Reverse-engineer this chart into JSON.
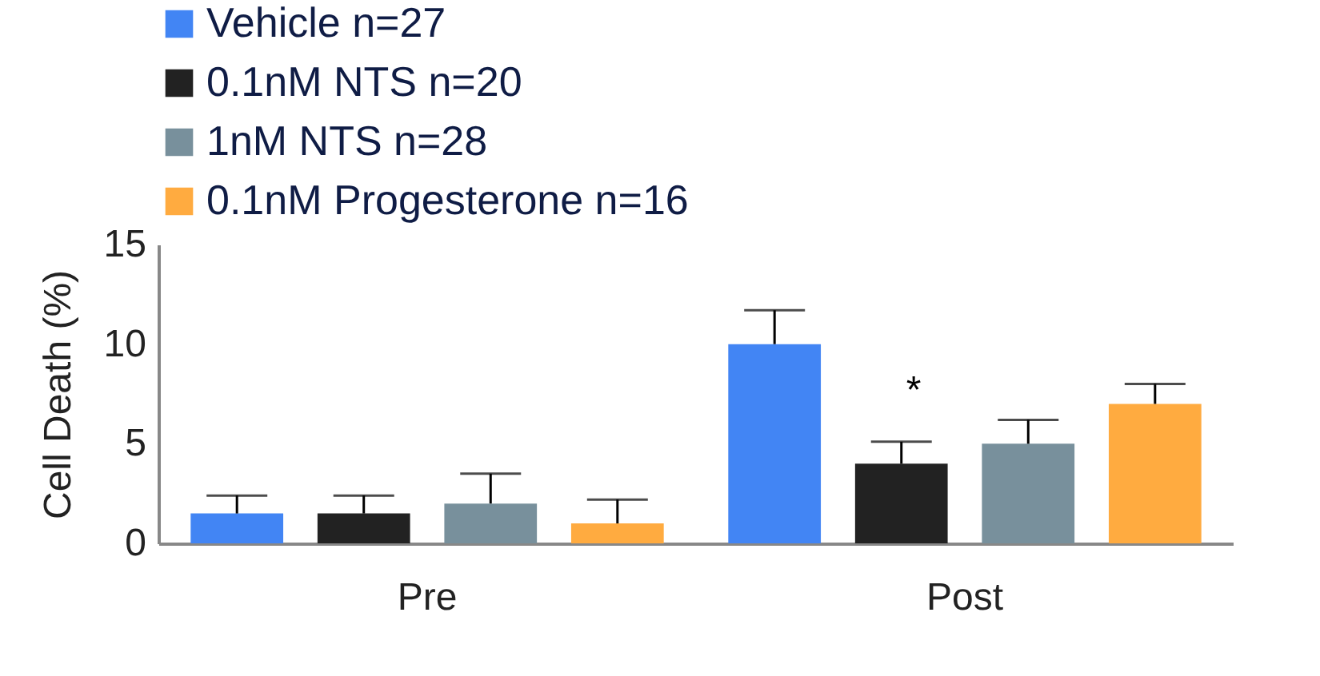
{
  "chart_data": {
    "type": "bar",
    "ylabel": "Cell Death (%)",
    "categories": [
      "Pre",
      "Post"
    ],
    "series": [
      {
        "name": "Vehicle n=27",
        "color": "#4285f4",
        "values": [
          1.5,
          10.0
        ],
        "errors": [
          [
            1.5,
            2.4
          ],
          [
            10.0,
            11.7
          ]
        ]
      },
      {
        "name": "0.1nM NTS n=20",
        "color": "#222222",
        "values": [
          1.5,
          4.0
        ],
        "errors": [
          [
            1.5,
            2.4
          ],
          [
            4.0,
            5.1
          ]
        ]
      },
      {
        "name": "1nM NTS n=28",
        "color": "#78909c",
        "values": [
          2.0,
          5.0
        ],
        "errors": [
          [
            2.0,
            3.5
          ],
          [
            5.0,
            6.2
          ]
        ]
      },
      {
        "name": "0.1nM Progesterone n=16",
        "color": "#ffab40",
        "values": [
          1.0,
          7.0
        ],
        "errors": [
          [
            1.0,
            2.2
          ],
          [
            7.0,
            8.0
          ]
        ]
      }
    ],
    "ylim": [
      0,
      15
    ],
    "yticks": [
      0,
      5,
      10,
      15
    ],
    "grid": false,
    "legend": "top",
    "annotations": [
      "*"
    ]
  }
}
